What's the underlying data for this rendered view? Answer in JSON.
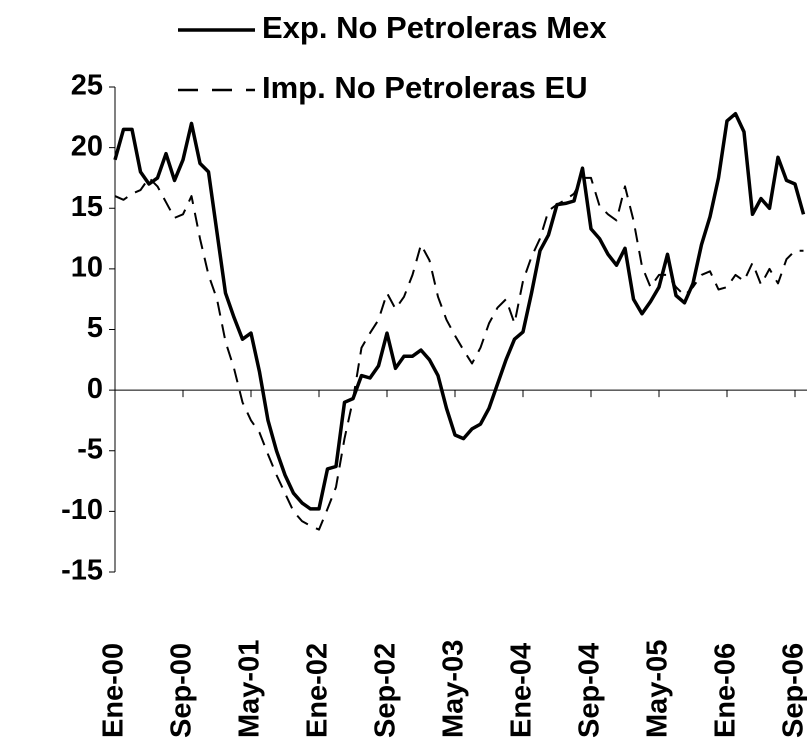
{
  "chart_data": {
    "type": "line",
    "categories": [
      "Ene-00",
      null,
      null,
      null,
      null,
      null,
      null,
      null,
      "Sep-00",
      null,
      null,
      null,
      null,
      null,
      null,
      null,
      "May-01",
      null,
      null,
      null,
      null,
      null,
      null,
      null,
      "Ene-02",
      null,
      null,
      null,
      null,
      null,
      null,
      null,
      "Sep-02",
      null,
      null,
      null,
      null,
      null,
      null,
      null,
      "May-03",
      null,
      null,
      null,
      null,
      null,
      null,
      null,
      "Ene-04",
      null,
      null,
      null,
      null,
      null,
      null,
      null,
      "Sep-04",
      null,
      null,
      null,
      null,
      null,
      null,
      null,
      "May-05",
      null,
      null,
      null,
      null,
      null,
      null,
      null,
      "Ene-06",
      null,
      null,
      null,
      null,
      null,
      null,
      null,
      "Sep-06",
      null
    ],
    "series": [
      {
        "name": "Exp. No Petroleras Mex",
        "color": "#000000",
        "dash": "solid",
        "values": [
          19,
          21.5,
          21.5,
          18,
          17,
          17.5,
          19.5,
          17.3,
          19,
          22,
          18.7,
          18,
          13,
          8,
          6,
          4.2,
          4.7,
          1.5,
          -2.5,
          -5,
          -7,
          -8.5,
          -9.3,
          -9.8,
          -9.8,
          -6.5,
          -6.3,
          -1,
          -0.7,
          1.2,
          1,
          2,
          4.7,
          1.8,
          2.8,
          2.8,
          3.3,
          2.5,
          1.2,
          -1.5,
          -3.7,
          -4,
          -3.2,
          -2.8,
          -1.5,
          0.5,
          2.5,
          4.2,
          4.8,
          8,
          11.5,
          12.8,
          15.3,
          15.4,
          15.6,
          18.3,
          13.3,
          12.5,
          11.2,
          10.3,
          11.7,
          7.5,
          6.3,
          7.3,
          8.5,
          11.2,
          7.8,
          7.2,
          8.8,
          12,
          14.3,
          17.5,
          22.2,
          22.8,
          21.3,
          14.5,
          15.8,
          15,
          19.2,
          17.3,
          17,
          14.5
        ]
      },
      {
        "name": "Imp. No Petroleras EU",
        "color": "#000000",
        "dash": "dashed",
        "values": [
          16,
          15.7,
          16.2,
          16.5,
          17.5,
          16.8,
          15.5,
          14.2,
          14.5,
          16,
          12.5,
          9.5,
          7.5,
          4,
          1.8,
          -1,
          -2.5,
          -3.5,
          -5.3,
          -7,
          -8.5,
          -10,
          -10.8,
          -11.2,
          -11.5,
          -9.8,
          -8,
          -4,
          -0.8,
          3.5,
          4.7,
          5.8,
          8,
          6.7,
          7.7,
          9.5,
          12,
          10.7,
          7.7,
          5.8,
          4.5,
          3.3,
          2.2,
          3.5,
          5.5,
          6.8,
          7.5,
          5.5,
          9,
          11,
          12.5,
          14.8,
          15.3,
          15.7,
          16.2,
          17.5,
          17.5,
          15.2,
          14.5,
          14,
          16.8,
          14,
          10.2,
          8.5,
          9.5,
          9.5,
          8.5,
          7.8,
          8.5,
          9.5,
          9.8,
          8.3,
          8.5,
          9.5,
          9,
          10.5,
          8.7,
          10,
          8.8,
          10.8,
          11.5,
          11.5
        ]
      }
    ],
    "ylim": [
      -15,
      25
    ],
    "yticks": [
      -15,
      -10,
      -5,
      0,
      5,
      10,
      15,
      20,
      25
    ],
    "legend": "top"
  }
}
